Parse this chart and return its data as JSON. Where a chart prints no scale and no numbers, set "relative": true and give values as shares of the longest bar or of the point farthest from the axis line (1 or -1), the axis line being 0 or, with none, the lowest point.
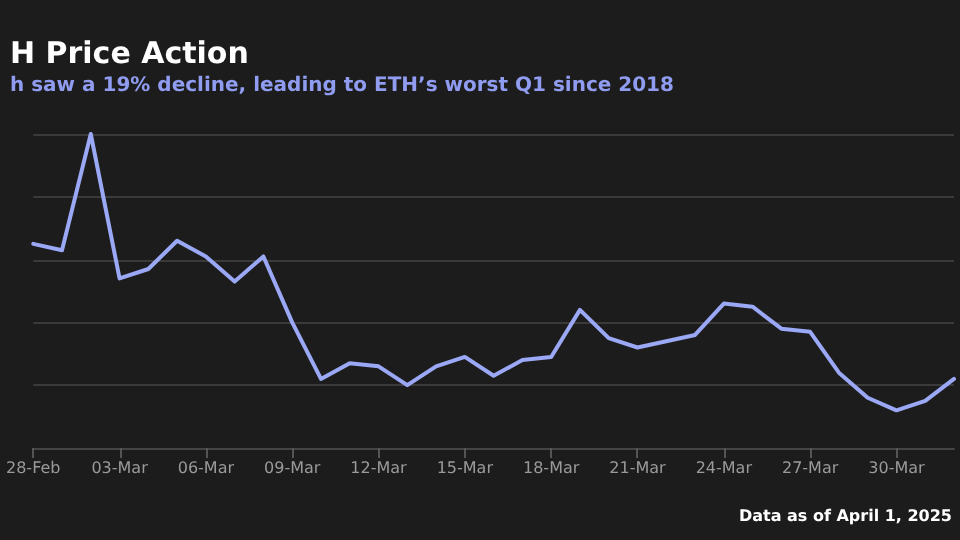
{
  "chart_data": {
    "type": "line",
    "title": "H Price Action",
    "subtitle": "h saw a 19% decline, leading to ETH’s worst Q1 since 2018",
    "annotations": [
      "Data as of April 1, 2025"
    ],
    "categories": [
      "28-Feb",
      null,
      null,
      "03-Mar",
      null,
      null,
      "06-Mar",
      null,
      null,
      "09-Mar",
      null,
      null,
      "12-Mar",
      null,
      null,
      "15-Mar",
      null,
      null,
      "18-Mar",
      null,
      null,
      "21-Mar",
      null,
      null,
      "24-Mar",
      null,
      null,
      "27-Mar",
      null,
      null,
      "30-Mar",
      null,
      null
    ],
    "relative": true,
    "grid": "y",
    "marker": "none",
    "line_style": "solid",
    "series": [
      {
        "color": "#9aa8f5",
        "values": [
          0.65,
          0.63,
          1,
          0.54,
          0.57,
          0.66,
          0.61,
          0.53,
          0.61,
          0.4,
          0.22,
          0.27,
          0.26,
          0.2,
          0.26,
          0.29,
          0.23,
          0.28,
          0.29,
          0.44,
          0.35,
          0.32,
          0.34,
          0.36,
          0.46,
          0.45,
          0.38,
          0.37,
          0.24,
          0.16,
          0.12,
          0.15,
          0.22
        ]
      }
    ]
  }
}
